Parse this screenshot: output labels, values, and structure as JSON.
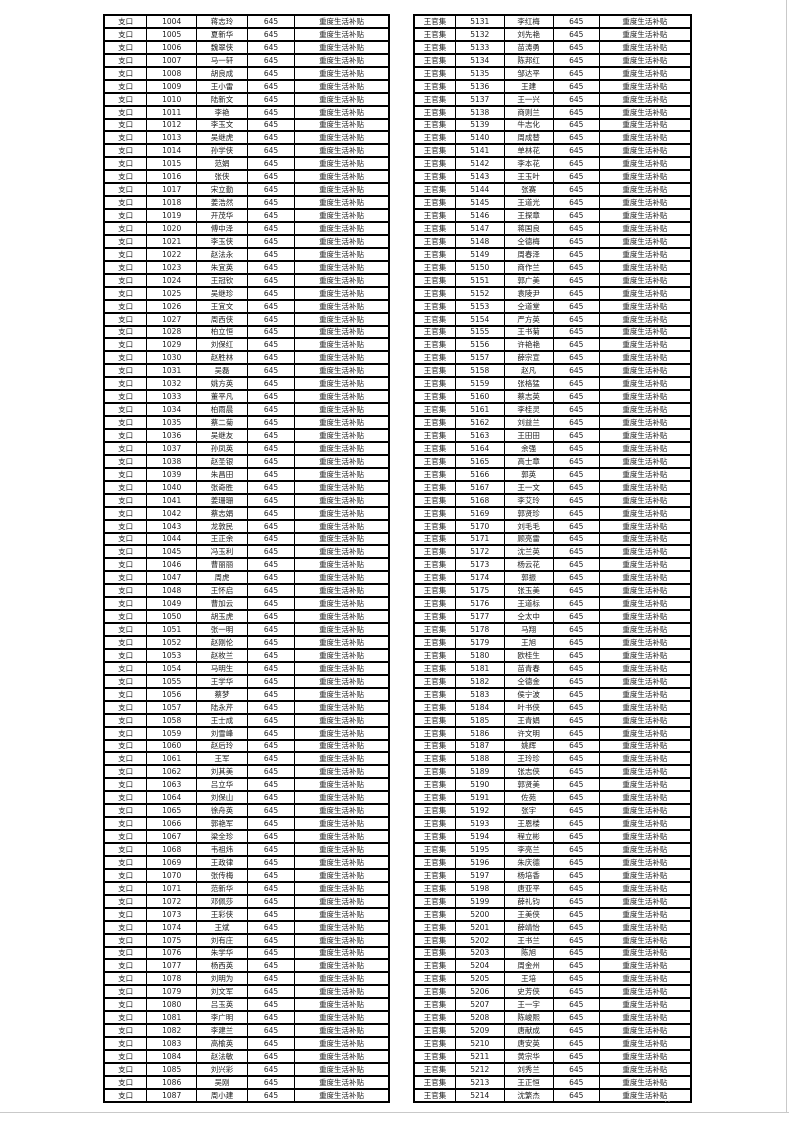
{
  "page": {
    "background": "#ffffff",
    "border_color": "#000000",
    "edge_line_color": "#c9c9c9",
    "footer_mark": "‥"
  },
  "tables": [
    {
      "town": "支口",
      "amount": "645",
      "subsidy": "重度生活补贴",
      "rows": [
        [
          "1004",
          "蒋志玲"
        ],
        [
          "1005",
          "夏新华"
        ],
        [
          "1006",
          "魏翠侠"
        ],
        [
          "1007",
          "马一轩"
        ],
        [
          "1008",
          "胡良成"
        ],
        [
          "1009",
          "王小雷"
        ],
        [
          "1010",
          "陆新文"
        ],
        [
          "1011",
          "李艳"
        ],
        [
          "1012",
          "李玉文"
        ],
        [
          "1013",
          "吴继虎"
        ],
        [
          "1014",
          "孙学侠"
        ],
        [
          "1015",
          "范娟"
        ],
        [
          "1016",
          "张侠"
        ],
        [
          "1017",
          "宋立勤"
        ],
        [
          "1018",
          "姜浩然"
        ],
        [
          "1019",
          "开茂华"
        ],
        [
          "1020",
          "傅中泽"
        ],
        [
          "1021",
          "李玉侠"
        ],
        [
          "1022",
          "赵法永"
        ],
        [
          "1023",
          "朱宜英"
        ],
        [
          "1024",
          "王冠钦"
        ],
        [
          "1025",
          "吴继珍"
        ],
        [
          "1026",
          "王宜文"
        ],
        [
          "1027",
          "周西侠"
        ],
        [
          "1028",
          "柏立恒"
        ],
        [
          "1029",
          "刘保红"
        ],
        [
          "1030",
          "赵胜林"
        ],
        [
          "1031",
          "吴磊"
        ],
        [
          "1032",
          "姚方英"
        ],
        [
          "1033",
          "董平凡"
        ],
        [
          "1034",
          "柏雨晨"
        ],
        [
          "1035",
          "蔡二菊"
        ],
        [
          "1036",
          "吴继友"
        ],
        [
          "1037",
          "孙凤英"
        ],
        [
          "1038",
          "赵圣银"
        ],
        [
          "1039",
          "朱昌田"
        ],
        [
          "1040",
          "张奇胜"
        ],
        [
          "1041",
          "姜珊珊"
        ],
        [
          "1042",
          "蔡志娟"
        ],
        [
          "1043",
          "龙敦民"
        ],
        [
          "1044",
          "王正余"
        ],
        [
          "1045",
          "冯玉利"
        ],
        [
          "1046",
          "曹丽丽"
        ],
        [
          "1047",
          "周虎"
        ],
        [
          "1048",
          "王怀启"
        ],
        [
          "1049",
          "曹加云"
        ],
        [
          "1050",
          "胡玉虎"
        ],
        [
          "1051",
          "张一明"
        ],
        [
          "1052",
          "赵刚伦"
        ],
        [
          "1053",
          "赵枚兰"
        ],
        [
          "1054",
          "马明生"
        ],
        [
          "1055",
          "王学华"
        ],
        [
          "1056",
          "蔡梦"
        ],
        [
          "1057",
          "陆永芹"
        ],
        [
          "1058",
          "王士成"
        ],
        [
          "1059",
          "刘雪峰"
        ],
        [
          "1060",
          "赵后玲"
        ],
        [
          "1061",
          "王军"
        ],
        [
          "1062",
          "刘其美"
        ],
        [
          "1063",
          "吕立华"
        ],
        [
          "1064",
          "刘保山"
        ],
        [
          "1065",
          "徐舟英"
        ],
        [
          "1066",
          "郭艳军"
        ],
        [
          "1067",
          "梁全珍"
        ],
        [
          "1068",
          "韦祖炜"
        ],
        [
          "1069",
          "王政律"
        ],
        [
          "1070",
          "张传梅"
        ],
        [
          "1071",
          "范新华"
        ],
        [
          "1072",
          "邓佩莎"
        ],
        [
          "1073",
          "王彩侠"
        ],
        [
          "1074",
          "王斌"
        ],
        [
          "1075",
          "刘有庄"
        ],
        [
          "1076",
          "朱学华"
        ],
        [
          "1077",
          "杨西英"
        ],
        [
          "1078",
          "刘明为"
        ],
        [
          "1079",
          "刘文军"
        ],
        [
          "1080",
          "吕玉英"
        ],
        [
          "1081",
          "李广明"
        ],
        [
          "1082",
          "李建兰"
        ],
        [
          "1083",
          "高榆英"
        ],
        [
          "1084",
          "赵法敏"
        ],
        [
          "1085",
          "刘兴彩"
        ],
        [
          "1086",
          "吴刚"
        ],
        [
          "1087",
          "周小建"
        ]
      ]
    },
    {
      "town": "王官集",
      "amount": "645",
      "subsidy": "重度生活补贴",
      "rows": [
        [
          "5131",
          "李红梅"
        ],
        [
          "5132",
          "刘先艳"
        ],
        [
          "5133",
          "苗涛勇"
        ],
        [
          "5134",
          "陈邦红"
        ],
        [
          "5135",
          "邹达平"
        ],
        [
          "5136",
          "王建"
        ],
        [
          "5137",
          "王一兴"
        ],
        [
          "5138",
          "商则兰"
        ],
        [
          "5139",
          "牛志化"
        ],
        [
          "5140",
          "周成替"
        ],
        [
          "5141",
          "单林花"
        ],
        [
          "5142",
          "李本花"
        ],
        [
          "5143",
          "王玉叶"
        ],
        [
          "5144",
          "张赛"
        ],
        [
          "5145",
          "王道光"
        ],
        [
          "5146",
          "王探章"
        ],
        [
          "5147",
          "蒋国良"
        ],
        [
          "5148",
          "仝德梅"
        ],
        [
          "5149",
          "周春泽"
        ],
        [
          "5150",
          "商作兰"
        ],
        [
          "5151",
          "郭广美"
        ],
        [
          "5152",
          "袁陵尹"
        ],
        [
          "5153",
          "仝道堂"
        ],
        [
          "5154",
          "严方英"
        ],
        [
          "5155",
          "王书菊"
        ],
        [
          "5156",
          "许艳艳"
        ],
        [
          "5157",
          "薛宗宣"
        ],
        [
          "5158",
          "赵凡"
        ],
        [
          "5159",
          "张格猛"
        ],
        [
          "5160",
          "蔡志英"
        ],
        [
          "5161",
          "李桂灵"
        ],
        [
          "5162",
          "刘益兰"
        ],
        [
          "5163",
          "王田田"
        ],
        [
          "5164",
          "余强"
        ],
        [
          "5165",
          "高士章"
        ],
        [
          "5166",
          "郭英"
        ],
        [
          "5167",
          "王一文"
        ],
        [
          "5168",
          "李艾玲"
        ],
        [
          "5169",
          "郭贤珍"
        ],
        [
          "5170",
          "刘毛毛"
        ],
        [
          "5171",
          "顾亮雷"
        ],
        [
          "5172",
          "沈兰英"
        ],
        [
          "5173",
          "杨云花"
        ],
        [
          "5174",
          "郭振"
        ],
        [
          "5175",
          "张玉美"
        ],
        [
          "5176",
          "王道标"
        ],
        [
          "5177",
          "仝太中"
        ],
        [
          "5178",
          "马翔"
        ],
        [
          "5179",
          "王旭"
        ],
        [
          "5180",
          "欧桂生"
        ],
        [
          "5181",
          "苗青春"
        ],
        [
          "5182",
          "仝德金"
        ],
        [
          "5183",
          "侯宁波"
        ],
        [
          "5184",
          "叶书侠"
        ],
        [
          "5185",
          "王青娟"
        ],
        [
          "5186",
          "许文明"
        ],
        [
          "5187",
          "姚辉"
        ],
        [
          "5188",
          "王玲珍"
        ],
        [
          "5189",
          "张志侠"
        ],
        [
          "5190",
          "郭贤美"
        ],
        [
          "5191",
          "佐苑"
        ],
        [
          "5192",
          "张宇"
        ],
        [
          "5193",
          "王恩楼"
        ],
        [
          "5194",
          "程立彬"
        ],
        [
          "5195",
          "李亮兰"
        ],
        [
          "5196",
          "朱庆德"
        ],
        [
          "5197",
          "杨培香"
        ],
        [
          "5198",
          "唐亚平"
        ],
        [
          "5199",
          "薛礼钧"
        ],
        [
          "5200",
          "王美侠"
        ],
        [
          "5201",
          "薛靖怡"
        ],
        [
          "5202",
          "王书兰"
        ],
        [
          "5203",
          "陈旭"
        ],
        [
          "5204",
          "周金州"
        ],
        [
          "5205",
          "王培"
        ],
        [
          "5206",
          "史芳侠"
        ],
        [
          "5207",
          "王一宇"
        ],
        [
          "5208",
          "陈峻熙"
        ],
        [
          "5209",
          "唐献成"
        ],
        [
          "5210",
          "唐安英"
        ],
        [
          "5211",
          "黄宗华"
        ],
        [
          "5212",
          "刘秀兰"
        ],
        [
          "5213",
          "王正恒"
        ],
        [
          "5214",
          "沈繁杰"
        ]
      ]
    }
  ]
}
